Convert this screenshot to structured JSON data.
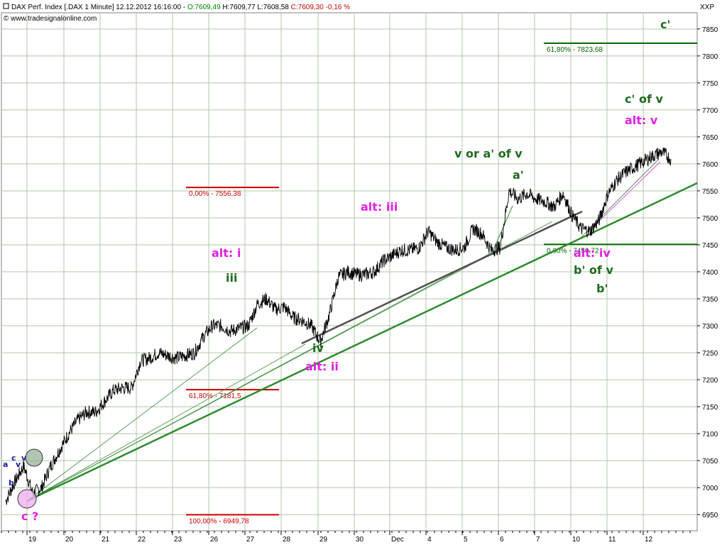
{
  "header": {
    "prefix": "DAX Perf. Index [.DAX  1 Minute] 12.12.2012 16:16:00 - ",
    "open": "O:7609,49",
    "high": " H:7609,77",
    "low": " L:7608,58",
    "close": " C:7609,30",
    "change": " -0,16 %",
    "close_change": "C:7609,30 -0,16 %",
    "website": "© www.tradesignalonline.com",
    "axis_label": "XXP",
    "colors": {
      "open": "#008000",
      "close": "#cc0000",
      "text": "#000000"
    }
  },
  "chart_data": {
    "type": "line",
    "title": "DAX Perf. Index [.DAX  1 Minute]",
    "series": [
      {
        "name": "DAX Perf. Index",
        "points": [
          [
            0,
            6975
          ],
          [
            1,
            7010
          ],
          [
            2,
            7040
          ],
          [
            3,
            6990
          ],
          [
            4,
            7000
          ],
          [
            5,
            7040
          ],
          [
            6,
            7070
          ],
          [
            7,
            7100
          ],
          [
            8,
            7125
          ],
          [
            9,
            7140
          ],
          [
            10,
            7140
          ],
          [
            11,
            7160
          ],
          [
            12,
            7180
          ],
          [
            13,
            7185
          ],
          [
            14,
            7185
          ],
          [
            15,
            7235
          ],
          [
            16,
            7240
          ],
          [
            17,
            7250
          ],
          [
            18,
            7245
          ],
          [
            19,
            7240
          ],
          [
            20,
            7245
          ],
          [
            21,
            7250
          ],
          [
            22,
            7280
          ],
          [
            23,
            7300
          ],
          [
            24,
            7300
          ],
          [
            25,
            7290
          ],
          [
            26,
            7295
          ],
          [
            27,
            7300
          ],
          [
            28,
            7340
          ],
          [
            29,
            7350
          ],
          [
            30,
            7330
          ],
          [
            31,
            7335
          ],
          [
            32,
            7315
          ],
          [
            33,
            7310
          ],
          [
            34,
            7300
          ],
          [
            35,
            7270
          ],
          [
            36,
            7320
          ],
          [
            37,
            7390
          ],
          [
            38,
            7400
          ],
          [
            39,
            7395
          ],
          [
            40,
            7395
          ],
          [
            41,
            7400
          ],
          [
            42,
            7420
          ],
          [
            43,
            7430
          ],
          [
            44,
            7440
          ],
          [
            45,
            7440
          ],
          [
            46,
            7445
          ],
          [
            47,
            7475
          ],
          [
            48,
            7455
          ],
          [
            49,
            7445
          ],
          [
            50,
            7440
          ],
          [
            51,
            7445
          ],
          [
            52,
            7480
          ],
          [
            53,
            7470
          ],
          [
            54,
            7440
          ],
          [
            55,
            7445
          ],
          [
            56,
            7550
          ],
          [
            57,
            7535
          ],
          [
            58,
            7545
          ],
          [
            59,
            7535
          ],
          [
            60,
            7530
          ],
          [
            61,
            7520
          ],
          [
            62,
            7545
          ],
          [
            63,
            7505
          ],
          [
            64,
            7480
          ],
          [
            65,
            7475
          ],
          [
            66,
            7495
          ],
          [
            67,
            7545
          ],
          [
            68,
            7570
          ],
          [
            69,
            7585
          ],
          [
            70,
            7595
          ],
          [
            71,
            7605
          ],
          [
            72,
            7615
          ],
          [
            73,
            7622
          ],
          [
            74,
            7609
          ]
        ]
      }
    ],
    "x_labels": [
      "19",
      "20",
      "21",
      "22",
      "23",
      "26",
      "27",
      "28",
      "29",
      "30",
      "Dec",
      "4",
      "5",
      "6",
      "7",
      "10",
      "11",
      "12"
    ],
    "y_ticks": [
      6950,
      7000,
      7050,
      7100,
      7150,
      7200,
      7250,
      7300,
      7350,
      7400,
      7450,
      7500,
      7550,
      7600,
      7650,
      7700,
      7750,
      7800,
      7850
    ],
    "ylim": [
      6920,
      7880
    ],
    "fib_levels": [
      {
        "label": "0,00% - 7556,38",
        "value": 7556.38,
        "color": "#cc0000"
      },
      {
        "label": "61,80% - 7181,5",
        "value": 7181.5,
        "color": "#cc0000"
      },
      {
        "label": "100,00% - 6949,78",
        "value": 6949.78,
        "color": "#cc0000"
      },
      {
        "label": "61,80% - 7823,68",
        "value": 7823.68,
        "color": "#006400"
      },
      {
        "label": "0,00% - 7450,72",
        "value": 7450.72,
        "color": "#006400"
      }
    ],
    "annotations": [
      {
        "text": "c'",
        "color": "#1e6b1e"
      },
      {
        "text": "c' of v",
        "color": "#1e6b1e"
      },
      {
        "text": "alt: v",
        "color": "#e020e0"
      },
      {
        "text": "v or a' of v",
        "color": "#1e6b1e"
      },
      {
        "text": "a'",
        "color": "#1e6b1e"
      },
      {
        "text": "alt: iii",
        "color": "#e020e0"
      },
      {
        "text": "alt: i",
        "color": "#e020e0"
      },
      {
        "text": "iii",
        "color": "#1e6b1e"
      },
      {
        "text": "iv",
        "color": "#1e6b1e"
      },
      {
        "text": "alt: ii",
        "color": "#e020e0"
      },
      {
        "text": "alt: iv",
        "color": "#e020e0"
      },
      {
        "text": "b' of v",
        "color": "#1e6b1e"
      },
      {
        "text": "b'",
        "color": "#1e6b1e"
      },
      {
        "text": "c ?",
        "color": "#e020e0"
      },
      {
        "text": "a",
        "color": "#1a1aa0"
      },
      {
        "text": "b",
        "color": "#1a1aa0"
      },
      {
        "text": "c",
        "color": "#1a1aa0"
      },
      {
        "text": "v",
        "color": "#1a1aa0"
      },
      {
        "text": "v",
        "color": "#1a1aa0"
      }
    ],
    "grid": true
  },
  "colors": {
    "price": "#000000",
    "grid": "#b0c4a8",
    "trend_main": "#2e8b2e",
    "trend_thin": "#3a8a3a",
    "trend_dark": "#505050",
    "trend_magenta": "#d060d0",
    "circle_green": "#8fae8f",
    "circle_pink": "#f0b0f0"
  }
}
